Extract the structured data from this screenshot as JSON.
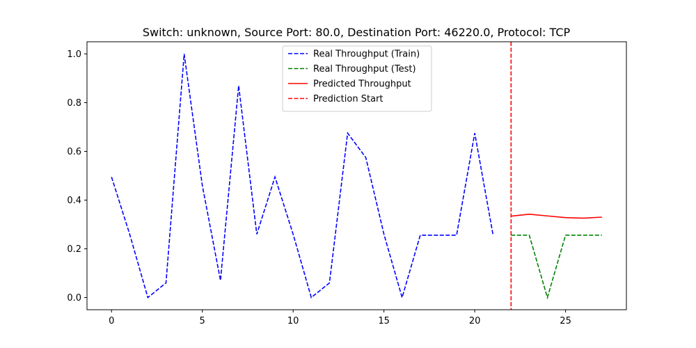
{
  "chart_data": {
    "type": "line",
    "title": "Switch: unknown, Source Port: 80.0, Destination Port: 46220.0, Protocol: TCP",
    "xlabel": "",
    "ylabel": "",
    "xlim": [
      -1.35,
      28.35
    ],
    "ylim": [
      -0.05,
      1.05
    ],
    "x_ticks": [
      0,
      5,
      10,
      15,
      20,
      25
    ],
    "y_ticks": [
      0.0,
      0.2,
      0.4,
      0.6,
      0.8,
      1.0
    ],
    "x_tick_labels": [
      "0",
      "5",
      "10",
      "15",
      "20",
      "25"
    ],
    "y_tick_labels": [
      "0.0",
      "0.2",
      "0.4",
      "0.6",
      "0.8",
      "1.0"
    ],
    "grid": false,
    "legend_position": "top-center",
    "series": [
      {
        "name": "Real Throughput (Train)",
        "color": "#0000ff",
        "style": "dashed",
        "x": [
          0,
          1,
          2,
          3,
          4,
          5,
          6,
          7,
          8,
          9,
          10,
          11,
          12,
          13,
          14,
          15,
          16,
          17,
          18,
          19,
          20,
          21
        ],
        "values": [
          0.495,
          0.26,
          0.0,
          0.06,
          1.0,
          0.46,
          0.07,
          0.87,
          0.26,
          0.495,
          0.26,
          0.0,
          0.06,
          0.675,
          0.575,
          0.26,
          0.0,
          0.256,
          0.256,
          0.256,
          0.675,
          0.26
        ]
      },
      {
        "name": "Real Throughput (Test)",
        "color": "#008000",
        "style": "dashed",
        "x": [
          22,
          23,
          24,
          25,
          26,
          27
        ],
        "values": [
          0.256,
          0.256,
          0.0,
          0.256,
          0.256,
          0.256
        ]
      },
      {
        "name": "Predicted Throughput",
        "color": "#ff0000",
        "style": "solid",
        "x": [
          22,
          23,
          24,
          25,
          26,
          27
        ],
        "values": [
          0.334,
          0.342,
          0.335,
          0.328,
          0.326,
          0.33
        ]
      }
    ],
    "vlines": [
      {
        "name": "Prediction Start",
        "color": "#ff0000",
        "style": "dashed",
        "x": 22
      }
    ]
  }
}
